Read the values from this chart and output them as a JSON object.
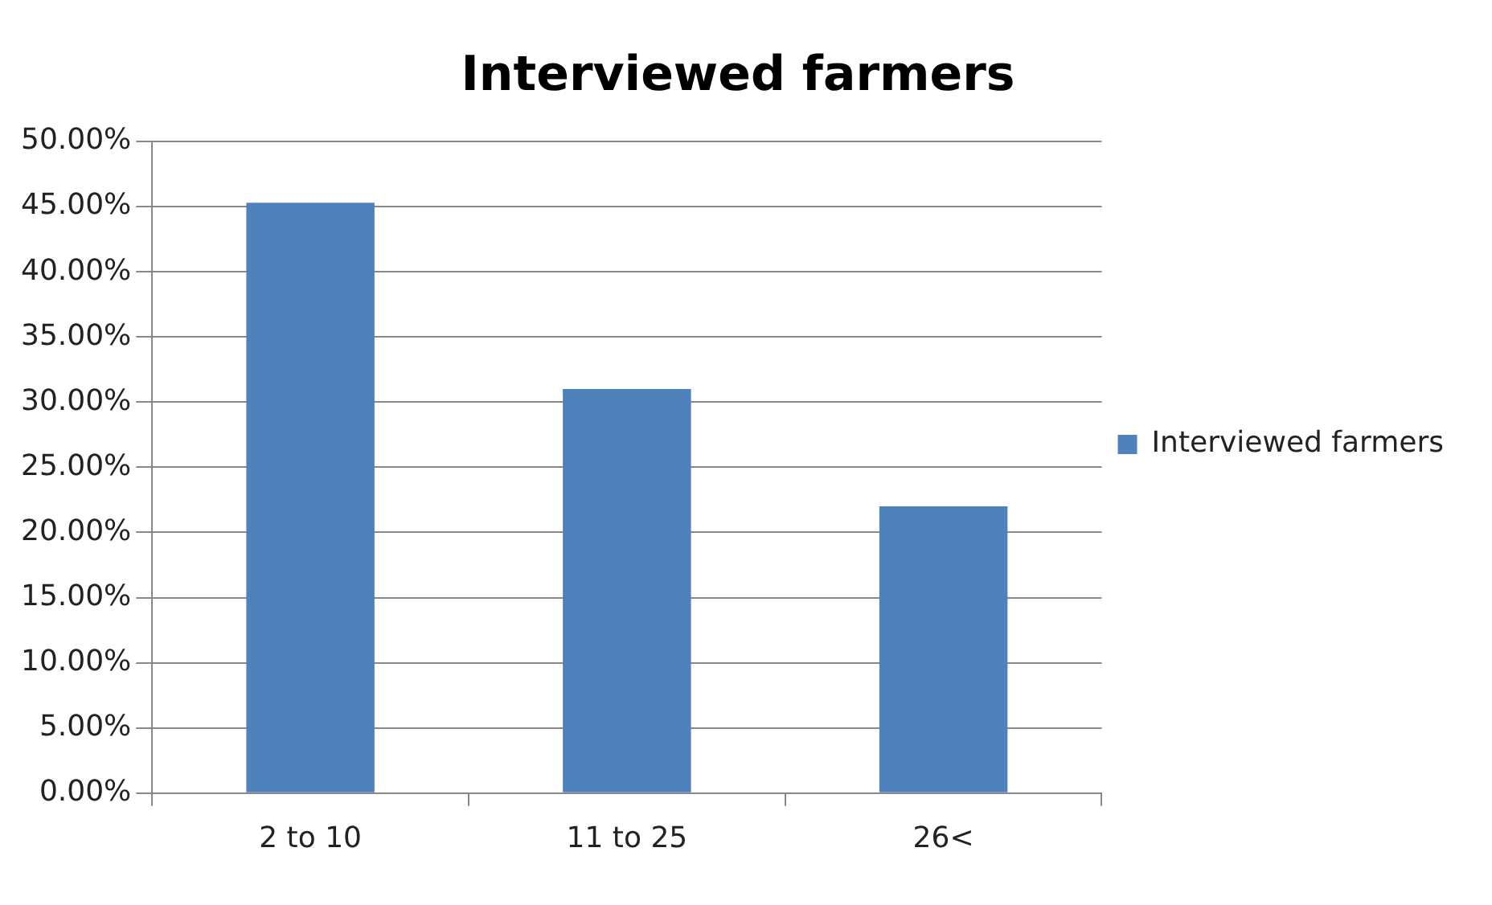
{
  "chart_data": {
    "type": "bar",
    "title": "Interviewed farmers",
    "categories": [
      "2 to 10",
      "11 to 25",
      "26<"
    ],
    "series": [
      {
        "name": "Interviewed farmers",
        "color": "#4f81bd",
        "values": [
          45.3,
          31.0,
          22.0
        ]
      }
    ],
    "ylim": [
      0,
      50
    ],
    "yticks": [
      {
        "value": 0,
        "label": "0.00%"
      },
      {
        "value": 5,
        "label": "5.00%"
      },
      {
        "value": 10,
        "label": "10.00%"
      },
      {
        "value": 15,
        "label": "15.00%"
      },
      {
        "value": 20,
        "label": "20.00%"
      },
      {
        "value": 25,
        "label": "25.00%"
      },
      {
        "value": 30,
        "label": "30.00%"
      },
      {
        "value": 35,
        "label": "35.00%"
      },
      {
        "value": 40,
        "label": "40.00%"
      },
      {
        "value": 45,
        "label": "45.00%"
      },
      {
        "value": 50,
        "label": "50.00%"
      }
    ],
    "grid": "y",
    "legend": "right"
  }
}
